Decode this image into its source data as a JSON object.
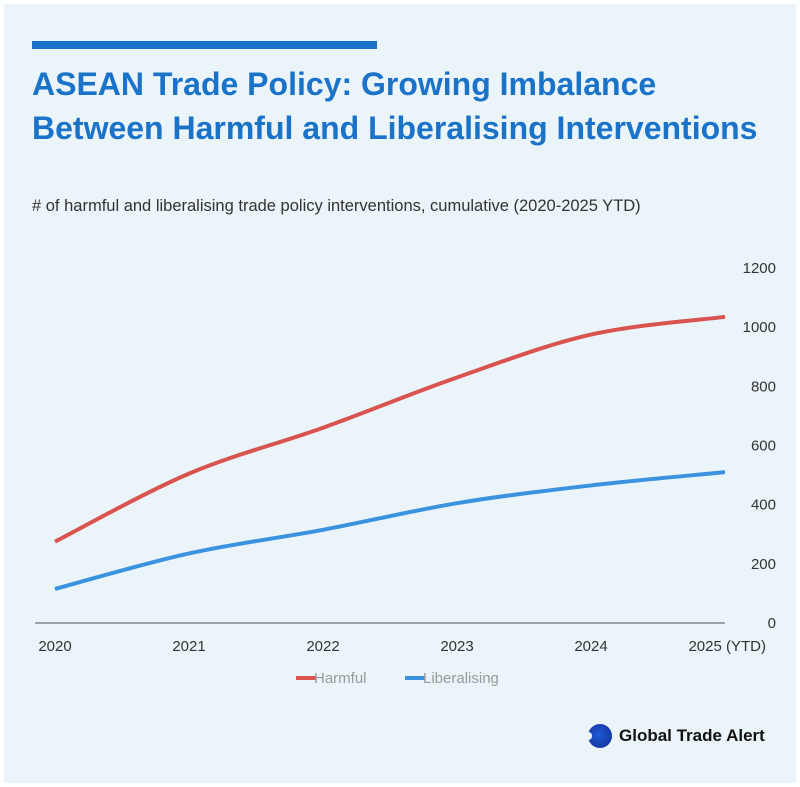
{
  "header": {
    "title": "ASEAN Trade Policy: Growing Imbalance Between Harmful and Liberalising Interventions",
    "subtitle": "# of harmful and liberalising trade policy interventions, cumulative (2020-2025 YTD)"
  },
  "brand": {
    "name": "Global Trade Alert",
    "logo_icon": "globe-logo-icon"
  },
  "colors": {
    "harmful": "#d9534f",
    "liberalising": "#3b93e0",
    "accent": "#1a73c9",
    "background": "#eaf4f9"
  },
  "chart_data": {
    "type": "line",
    "x": [
      "2020",
      "2021",
      "2022",
      "2023",
      "2024",
      "2025 (YTD)"
    ],
    "ylim": [
      0,
      1200
    ],
    "yticks": [
      0,
      200,
      400,
      600,
      800,
      1000,
      1200
    ],
    "y_axis_position": "right",
    "grid": false,
    "legend_position": "bottom-center",
    "series": [
      {
        "name": "Harmful",
        "values": [
          275,
          505,
          660,
          830,
          975,
          1035
        ]
      },
      {
        "name": "Liberalising",
        "values": [
          115,
          235,
          315,
          405,
          465,
          510
        ]
      }
    ]
  }
}
